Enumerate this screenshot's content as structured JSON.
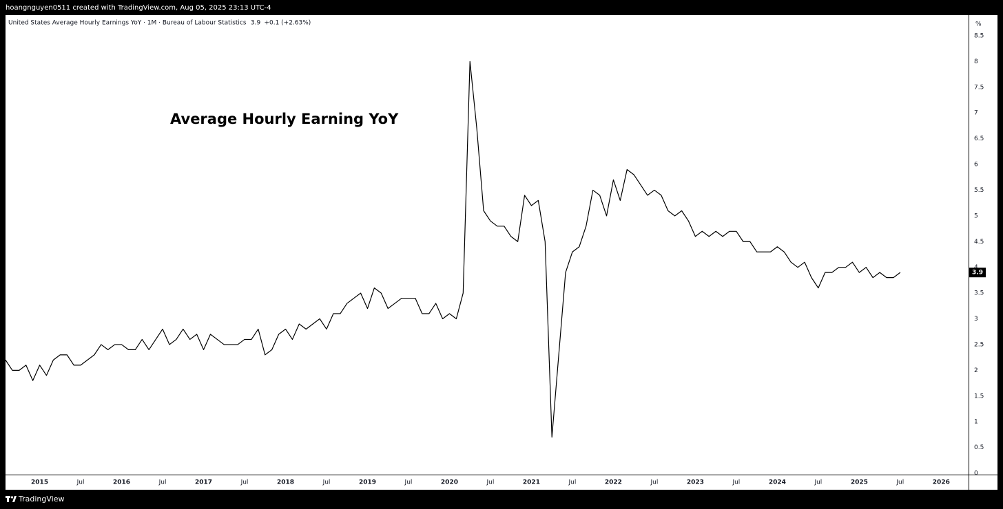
{
  "header": {
    "text": "hoangnguyen0511 created with TradingView.com, Aug 05, 2025 23:13 UTC-4"
  },
  "footer": {
    "brand": "TradingView"
  },
  "chart_data": {
    "type": "line",
    "legend": "United States Average Hourly Earnings YoY · 1M · Bureau of Labour Statistics",
    "legend_change": "+0.1 (+2.63%)",
    "title": "Average Hourly Earning YoY",
    "y_unit": "%",
    "color": "#000000",
    "x": [
      "2014-08",
      "2014-09",
      "2014-10",
      "2014-11",
      "2014-12",
      "2015-01",
      "2015-02",
      "2015-03",
      "2015-04",
      "2015-05",
      "2015-06",
      "2015-07",
      "2015-08",
      "2015-09",
      "2015-10",
      "2015-11",
      "2015-12",
      "2016-01",
      "2016-02",
      "2016-03",
      "2016-04",
      "2016-05",
      "2016-06",
      "2016-07",
      "2016-08",
      "2016-09",
      "2016-10",
      "2016-11",
      "2016-12",
      "2017-01",
      "2017-02",
      "2017-03",
      "2017-04",
      "2017-05",
      "2017-06",
      "2017-07",
      "2017-08",
      "2017-09",
      "2017-10",
      "2017-11",
      "2017-12",
      "2018-01",
      "2018-02",
      "2018-03",
      "2018-04",
      "2018-05",
      "2018-06",
      "2018-07",
      "2018-08",
      "2018-09",
      "2018-10",
      "2018-11",
      "2018-12",
      "2019-01",
      "2019-02",
      "2019-03",
      "2019-04",
      "2019-05",
      "2019-06",
      "2019-07",
      "2019-08",
      "2019-09",
      "2019-10",
      "2019-11",
      "2019-12",
      "2020-01",
      "2020-02",
      "2020-03",
      "2020-04",
      "2020-05",
      "2020-06",
      "2020-07",
      "2020-08",
      "2020-09",
      "2020-10",
      "2020-11",
      "2020-12",
      "2021-01",
      "2021-02",
      "2021-03",
      "2021-04",
      "2021-05",
      "2021-06",
      "2021-07",
      "2021-08",
      "2021-09",
      "2021-10",
      "2021-11",
      "2021-12",
      "2022-01",
      "2022-02",
      "2022-03",
      "2022-04",
      "2022-05",
      "2022-06",
      "2022-07",
      "2022-08",
      "2022-09",
      "2022-10",
      "2022-11",
      "2022-12",
      "2023-01",
      "2023-02",
      "2023-03",
      "2023-04",
      "2023-05",
      "2023-06",
      "2023-07",
      "2023-08",
      "2023-09",
      "2023-10",
      "2023-11",
      "2023-12",
      "2024-01",
      "2024-02",
      "2024-03",
      "2024-04",
      "2024-05",
      "2024-06",
      "2024-07",
      "2024-08",
      "2024-09",
      "2024-10",
      "2024-11",
      "2024-12",
      "2025-01",
      "2025-02",
      "2025-03",
      "2025-04",
      "2025-05",
      "2025-06",
      "2025-07"
    ],
    "values": [
      2.2,
      2.0,
      2.0,
      2.1,
      1.8,
      2.1,
      1.9,
      2.2,
      2.3,
      2.3,
      2.1,
      2.1,
      2.2,
      2.3,
      2.5,
      2.4,
      2.5,
      2.5,
      2.4,
      2.4,
      2.6,
      2.4,
      2.6,
      2.8,
      2.5,
      2.6,
      2.8,
      2.6,
      2.7,
      2.4,
      2.7,
      2.6,
      2.5,
      2.5,
      2.5,
      2.6,
      2.6,
      2.8,
      2.3,
      2.4,
      2.7,
      2.8,
      2.6,
      2.9,
      2.8,
      2.9,
      3.0,
      2.8,
      3.1,
      3.1,
      3.3,
      3.4,
      3.5,
      3.2,
      3.6,
      3.5,
      3.2,
      3.3,
      3.4,
      3.4,
      3.4,
      3.1,
      3.1,
      3.3,
      3.0,
      3.1,
      3.0,
      3.5,
      8.0,
      6.7,
      5.1,
      4.9,
      4.8,
      4.8,
      4.6,
      4.5,
      5.4,
      5.2,
      5.3,
      4.5,
      0.7,
      2.3,
      3.9,
      4.3,
      4.4,
      4.8,
      5.5,
      5.4,
      5.0,
      5.7,
      5.3,
      5.9,
      5.8,
      5.6,
      5.4,
      5.5,
      5.4,
      5.1,
      5.0,
      5.1,
      4.9,
      4.6,
      4.7,
      4.6,
      4.7,
      4.6,
      4.7,
      4.7,
      4.5,
      4.5,
      4.3,
      4.3,
      4.3,
      4.4,
      4.3,
      4.1,
      4.0,
      4.1,
      3.8,
      3.6,
      3.9,
      3.9,
      4.0,
      4.0,
      4.1,
      3.9,
      4.0,
      3.8,
      3.9,
      3.8,
      3.8,
      3.9
    ],
    "xlim": [
      "2014-08",
      "2026-05"
    ],
    "xticks": [
      {
        "value": "2015-01",
        "label": "2015"
      },
      {
        "value": "2015-07",
        "label": "Jul"
      },
      {
        "value": "2016-01",
        "label": "2016"
      },
      {
        "value": "2016-07",
        "label": "Jul"
      },
      {
        "value": "2017-01",
        "label": "2017"
      },
      {
        "value": "2017-07",
        "label": "Jul"
      },
      {
        "value": "2018-01",
        "label": "2018"
      },
      {
        "value": "2018-07",
        "label": "Jul"
      },
      {
        "value": "2019-01",
        "label": "2019"
      },
      {
        "value": "2019-07",
        "label": "Jul"
      },
      {
        "value": "2020-01",
        "label": "2020"
      },
      {
        "value": "2020-07",
        "label": "Jul"
      },
      {
        "value": "2021-01",
        "label": "2021"
      },
      {
        "value": "2021-07",
        "label": "Jul"
      },
      {
        "value": "2022-01",
        "label": "2022"
      },
      {
        "value": "2022-07",
        "label": "Jul"
      },
      {
        "value": "2023-01",
        "label": "2023"
      },
      {
        "value": "2023-07",
        "label": "Jul"
      },
      {
        "value": "2024-01",
        "label": "2024"
      },
      {
        "value": "2024-07",
        "label": "Jul"
      },
      {
        "value": "2025-01",
        "label": "2025"
      },
      {
        "value": "2025-07",
        "label": "Jul"
      },
      {
        "value": "2026-01",
        "label": "2026"
      }
    ],
    "ylim": [
      0,
      8.9
    ],
    "yticks": [
      0,
      0.5,
      1,
      1.5,
      2,
      2.5,
      3,
      3.5,
      4,
      4.5,
      5,
      5.5,
      6,
      6.5,
      7,
      7.5,
      8,
      8.5
    ]
  }
}
